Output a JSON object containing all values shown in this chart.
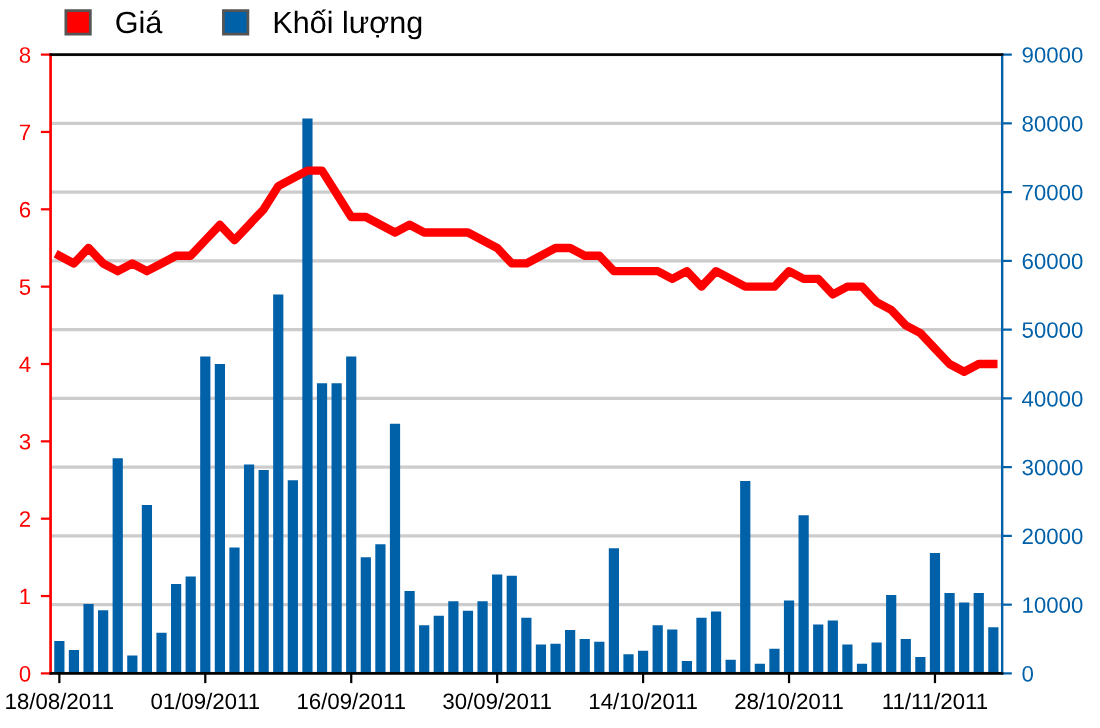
{
  "chart_data": {
    "type": "bar",
    "categories": [
      "18/08/2011",
      null,
      null,
      null,
      null,
      null,
      null,
      null,
      null,
      null,
      "01/09/2011",
      null,
      null,
      null,
      null,
      null,
      null,
      null,
      null,
      null,
      "16/09/2011",
      null,
      null,
      null,
      null,
      null,
      null,
      null,
      null,
      null,
      "30/09/2011",
      null,
      null,
      null,
      null,
      null,
      null,
      null,
      null,
      null,
      "14/10/2011",
      null,
      null,
      null,
      null,
      null,
      null,
      null,
      null,
      null,
      "28/10/2011",
      null,
      null,
      null,
      null,
      null,
      null,
      null,
      null,
      null,
      "11/11/2011",
      null,
      null,
      null,
      null
    ],
    "series": [
      {
        "name": "Giá",
        "type": "line",
        "color": "#ff0000",
        "values": [
          5.4,
          5.3,
          5.5,
          5.3,
          5.2,
          5.3,
          5.2,
          5.3,
          5.4,
          5.4,
          5.6,
          5.8,
          5.6,
          5.8,
          6.0,
          6.3,
          6.4,
          6.5,
          6.5,
          6.2,
          5.9,
          5.9,
          5.8,
          5.7,
          5.8,
          5.7,
          5.7,
          5.7,
          5.7,
          5.6,
          5.5,
          5.3,
          5.3,
          5.4,
          5.5,
          5.5,
          5.4,
          5.4,
          5.2,
          5.2,
          5.2,
          5.2,
          5.1,
          5.2,
          5.0,
          5.2,
          5.1,
          5.0,
          5.0,
          5.0,
          5.2,
          5.1,
          5.1,
          4.9,
          5.0,
          5.0,
          4.8,
          4.7,
          4.5,
          4.4,
          4.2,
          4.0,
          3.9,
          4.0,
          4.0
        ]
      },
      {
        "name": "Khối lượng",
        "axis": "y2",
        "color": "#0060a8",
        "values": [
          4700,
          3400,
          10100,
          9200,
          31300,
          2600,
          24500,
          5900,
          13000,
          14100,
          46100,
          45000,
          18300,
          30400,
          29600,
          55100,
          28100,
          80700,
          42200,
          42200,
          46100,
          16900,
          18800,
          36300,
          12000,
          7000,
          8400,
          10500,
          9100,
          10500,
          14400,
          14200,
          8100,
          4200,
          4300,
          6300,
          5000,
          4600,
          18200,
          2800,
          3300,
          7000,
          6400,
          1800,
          8100,
          9000,
          2000,
          28000,
          1400,
          3600,
          10600,
          23000,
          7100,
          7700,
          4200,
          1400,
          4500,
          11400,
          5000,
          2400,
          17500,
          11700,
          10300,
          11700,
          6700
        ]
      }
    ],
    "ylim": [
      0,
      8
    ],
    "yticks": [
      0,
      1,
      2,
      3,
      4,
      5,
      6,
      7,
      8
    ],
    "y2lim": [
      0,
      90000
    ],
    "y2ticks": [
      0,
      10000,
      20000,
      30000,
      40000,
      50000,
      60000,
      70000,
      80000,
      90000
    ],
    "grid": "y",
    "legend": "top"
  }
}
